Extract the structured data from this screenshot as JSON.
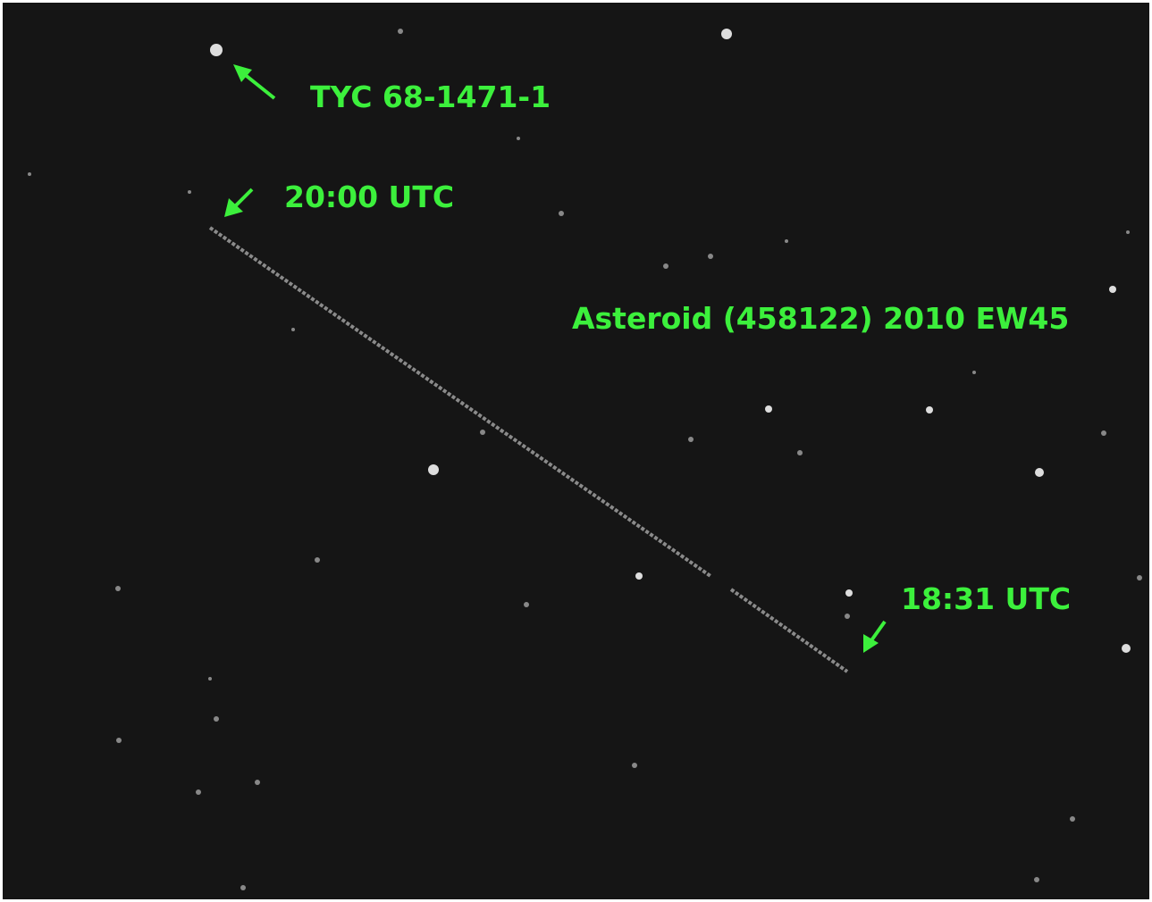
{
  "labels": {
    "star": "TYC 68-1471-1",
    "start_time": "20:00 UTC",
    "asteroid": "Asteroid (458122) 2010 EW45",
    "end_time": "18:31 UTC"
  }
}
